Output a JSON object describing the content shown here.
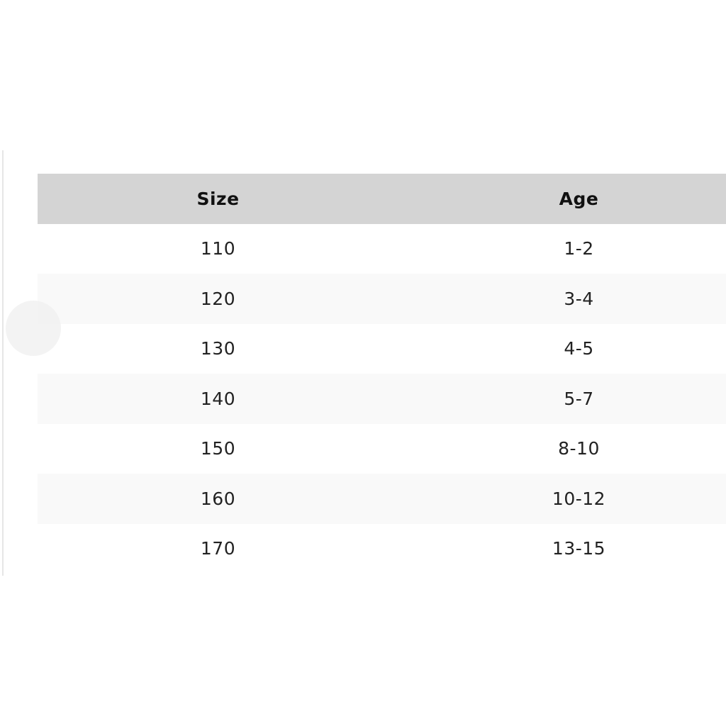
{
  "table": {
    "headers": [
      "Size",
      "Age"
    ],
    "rows": [
      [
        "110",
        "1-2"
      ],
      [
        "120",
        "3-4"
      ],
      [
        "130",
        "4-5"
      ],
      [
        "140",
        "5-7"
      ],
      [
        "150",
        "8-10"
      ],
      [
        "160",
        "10-12"
      ],
      [
        "170",
        "13-15"
      ]
    ]
  },
  "colors": {
    "header_bg": "#d4d4d4",
    "alt_row_bg": "#f9f9f9"
  }
}
